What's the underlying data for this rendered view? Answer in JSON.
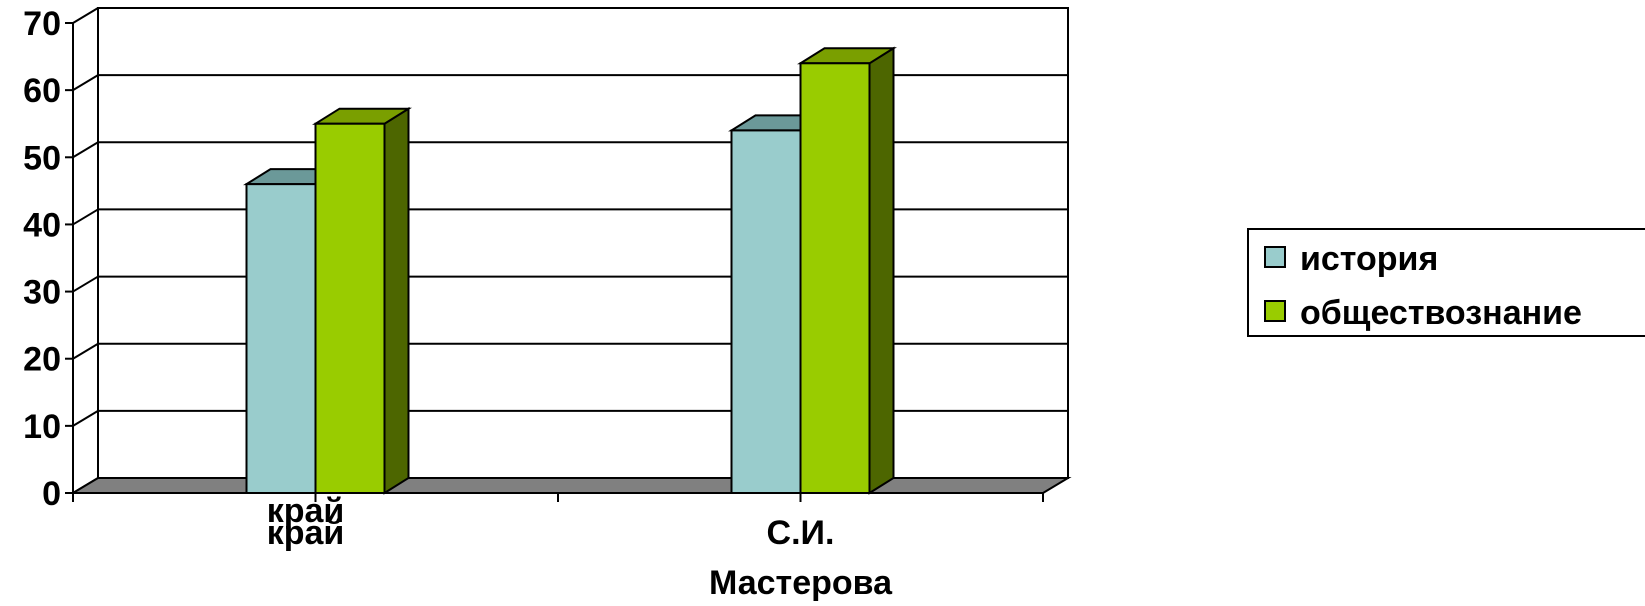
{
  "chart_data": {
    "type": "bar",
    "title": "",
    "xlabel": "",
    "ylabel": "",
    "ylim": [
      0,
      70
    ],
    "yticks": [
      "0",
      "10",
      "20",
      "30",
      "40",
      "50",
      "60",
      "70"
    ],
    "grid": true,
    "legend_position": "right",
    "categories": [
      {
        "lines": [
          "край",
          "край"
        ]
      },
      {
        "lines": [
          "С.И.",
          "Мастерова"
        ]
      }
    ],
    "series": [
      {
        "name": "история",
        "values": [
          46,
          54
        ],
        "color": "#99cccc",
        "top_color": "#6b9999",
        "side_color": "#5f8f8f"
      },
      {
        "name": "обществознание",
        "values": [
          55,
          64
        ],
        "color": "#99cc00",
        "top_color": "#7a9f00",
        "side_color": "#4d6600"
      }
    ]
  }
}
